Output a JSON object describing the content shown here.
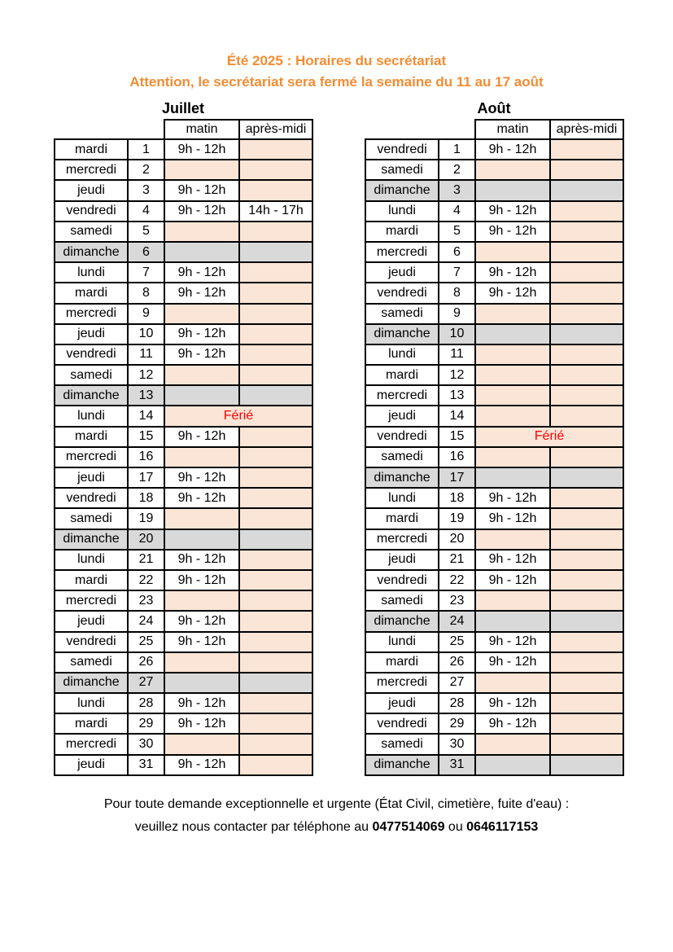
{
  "header": {
    "title_line1": "Été 2025 : Horaires du secrétariat",
    "title_line2": "Attention, le secrétariat sera fermé la semaine du 11 au 17 août"
  },
  "colors": {
    "title_orange": "#F28C33",
    "closed_fill": "#FBE5D6",
    "sunday_fill": "#D9D9D9",
    "holiday_red": "#FF0000",
    "border_color": "#000000"
  },
  "column_headers": {
    "matin": "matin",
    "apres_midi": "après-midi"
  },
  "holiday_label": "Férié",
  "months": [
    {
      "name": "Juillet",
      "rows": [
        {
          "day": "mardi",
          "num": "1",
          "matin": "9h - 12h",
          "apres": "",
          "kind": "open"
        },
        {
          "day": "mercredi",
          "num": "2",
          "matin": "",
          "apres": "",
          "kind": "closed"
        },
        {
          "day": "jeudi",
          "num": "3",
          "matin": "9h - 12h",
          "apres": "",
          "kind": "open"
        },
        {
          "day": "vendredi",
          "num": "4",
          "matin": "9h - 12h",
          "apres": "14h - 17h",
          "kind": "open"
        },
        {
          "day": "samedi",
          "num": "5",
          "matin": "",
          "apres": "",
          "kind": "closed"
        },
        {
          "day": "dimanche",
          "num": "6",
          "matin": "",
          "apres": "",
          "kind": "sunday"
        },
        {
          "day": "lundi",
          "num": "7",
          "matin": "9h - 12h",
          "apres": "",
          "kind": "open"
        },
        {
          "day": "mardi",
          "num": "8",
          "matin": "9h - 12h",
          "apres": "",
          "kind": "open"
        },
        {
          "day": "mercredi",
          "num": "9",
          "matin": "",
          "apres": "",
          "kind": "closed"
        },
        {
          "day": "jeudi",
          "num": "10",
          "matin": "9h - 12h",
          "apres": "",
          "kind": "open"
        },
        {
          "day": "vendredi",
          "num": "11",
          "matin": "9h - 12h",
          "apres": "",
          "kind": "open"
        },
        {
          "day": "samedi",
          "num": "12",
          "matin": "",
          "apres": "",
          "kind": "closed"
        },
        {
          "day": "dimanche",
          "num": "13",
          "matin": "",
          "apres": "",
          "kind": "sunday"
        },
        {
          "day": "lundi",
          "num": "14",
          "matin": "",
          "apres": "",
          "kind": "holiday"
        },
        {
          "day": "mardi",
          "num": "15",
          "matin": "9h - 12h",
          "apres": "",
          "kind": "open"
        },
        {
          "day": "mercredi",
          "num": "16",
          "matin": "",
          "apres": "",
          "kind": "closed"
        },
        {
          "day": "jeudi",
          "num": "17",
          "matin": "9h - 12h",
          "apres": "",
          "kind": "open"
        },
        {
          "day": "vendredi",
          "num": "18",
          "matin": "9h - 12h",
          "apres": "",
          "kind": "open"
        },
        {
          "day": "samedi",
          "num": "19",
          "matin": "",
          "apres": "",
          "kind": "closed"
        },
        {
          "day": "dimanche",
          "num": "20",
          "matin": "",
          "apres": "",
          "kind": "sunday"
        },
        {
          "day": "lundi",
          "num": "21",
          "matin": "9h - 12h",
          "apres": "",
          "kind": "open"
        },
        {
          "day": "mardi",
          "num": "22",
          "matin": "9h - 12h",
          "apres": "",
          "kind": "open"
        },
        {
          "day": "mercredi",
          "num": "23",
          "matin": "",
          "apres": "",
          "kind": "closed"
        },
        {
          "day": "jeudi",
          "num": "24",
          "matin": "9h - 12h",
          "apres": "",
          "kind": "open"
        },
        {
          "day": "vendredi",
          "num": "25",
          "matin": "9h - 12h",
          "apres": "",
          "kind": "open"
        },
        {
          "day": "samedi",
          "num": "26",
          "matin": "",
          "apres": "",
          "kind": "closed"
        },
        {
          "day": "dimanche",
          "num": "27",
          "matin": "",
          "apres": "",
          "kind": "sunday"
        },
        {
          "day": "lundi",
          "num": "28",
          "matin": "9h - 12h",
          "apres": "",
          "kind": "open"
        },
        {
          "day": "mardi",
          "num": "29",
          "matin": "9h - 12h",
          "apres": "",
          "kind": "open"
        },
        {
          "day": "mercredi",
          "num": "30",
          "matin": "",
          "apres": "",
          "kind": "closed"
        },
        {
          "day": "jeudi",
          "num": "31",
          "matin": "9h - 12h",
          "apres": "",
          "kind": "open"
        }
      ]
    },
    {
      "name": "Août",
      "rows": [
        {
          "day": "vendredi",
          "num": "1",
          "matin": "9h - 12h",
          "apres": "",
          "kind": "open"
        },
        {
          "day": "samedi",
          "num": "2",
          "matin": "",
          "apres": "",
          "kind": "closed"
        },
        {
          "day": "dimanche",
          "num": "3",
          "matin": "",
          "apres": "",
          "kind": "sunday"
        },
        {
          "day": "lundi",
          "num": "4",
          "matin": "9h - 12h",
          "apres": "",
          "kind": "open"
        },
        {
          "day": "mardi",
          "num": "5",
          "matin": "9h - 12h",
          "apres": "",
          "kind": "open"
        },
        {
          "day": "mercredi",
          "num": "6",
          "matin": "",
          "apres": "",
          "kind": "closed"
        },
        {
          "day": "jeudi",
          "num": "7",
          "matin": "9h - 12h",
          "apres": "",
          "kind": "open"
        },
        {
          "day": "vendredi",
          "num": "8",
          "matin": "9h - 12h",
          "apres": "",
          "kind": "open"
        },
        {
          "day": "samedi",
          "num": "9",
          "matin": "",
          "apres": "",
          "kind": "closed"
        },
        {
          "day": "dimanche",
          "num": "10",
          "matin": "",
          "apres": "",
          "kind": "sunday"
        },
        {
          "day": "lundi",
          "num": "11",
          "matin": "",
          "apres": "",
          "kind": "closed"
        },
        {
          "day": "mardi",
          "num": "12",
          "matin": "",
          "apres": "",
          "kind": "closed"
        },
        {
          "day": "mercredi",
          "num": "13",
          "matin": "",
          "apres": "",
          "kind": "closed"
        },
        {
          "day": "jeudi",
          "num": "14",
          "matin": "",
          "apres": "",
          "kind": "closed"
        },
        {
          "day": "vendredi",
          "num": "15",
          "matin": "",
          "apres": "",
          "kind": "holiday"
        },
        {
          "day": "samedi",
          "num": "16",
          "matin": "",
          "apres": "",
          "kind": "closed"
        },
        {
          "day": "dimanche",
          "num": "17",
          "matin": "",
          "apres": "",
          "kind": "sunday"
        },
        {
          "day": "lundi",
          "num": "18",
          "matin": "9h - 12h",
          "apres": "",
          "kind": "open"
        },
        {
          "day": "mardi",
          "num": "19",
          "matin": "9h - 12h",
          "apres": "",
          "kind": "open"
        },
        {
          "day": "mercredi",
          "num": "20",
          "matin": "",
          "apres": "",
          "kind": "closed"
        },
        {
          "day": "jeudi",
          "num": "21",
          "matin": "9h - 12h",
          "apres": "",
          "kind": "open"
        },
        {
          "day": "vendredi",
          "num": "22",
          "matin": "9h - 12h",
          "apres": "",
          "kind": "open"
        },
        {
          "day": "samedi",
          "num": "23",
          "matin": "",
          "apres": "",
          "kind": "closed"
        },
        {
          "day": "dimanche",
          "num": "24",
          "matin": "",
          "apres": "",
          "kind": "sunday"
        },
        {
          "day": "lundi",
          "num": "25",
          "matin": "9h - 12h",
          "apres": "",
          "kind": "open"
        },
        {
          "day": "mardi",
          "num": "26",
          "matin": "9h - 12h",
          "apres": "",
          "kind": "open"
        },
        {
          "day": "mercredi",
          "num": "27",
          "matin": "",
          "apres": "",
          "kind": "closed"
        },
        {
          "day": "jeudi",
          "num": "28",
          "matin": "9h - 12h",
          "apres": "",
          "kind": "open"
        },
        {
          "day": "vendredi",
          "num": "29",
          "matin": "9h - 12h",
          "apres": "",
          "kind": "open"
        },
        {
          "day": "samedi",
          "num": "30",
          "matin": "",
          "apres": "",
          "kind": "closed"
        },
        {
          "day": "dimanche",
          "num": "31",
          "matin": "",
          "apres": "",
          "kind": "sunday"
        }
      ]
    }
  ],
  "footer": {
    "line1": "Pour toute demande exceptionnelle et urgente (État Civil, cimetière, fuite d'eau) :",
    "line2_prefix": "veuillez nous contacter par téléphone au ",
    "phone1": "0477514069",
    "line2_or": " ou ",
    "phone2": "0646117153"
  }
}
